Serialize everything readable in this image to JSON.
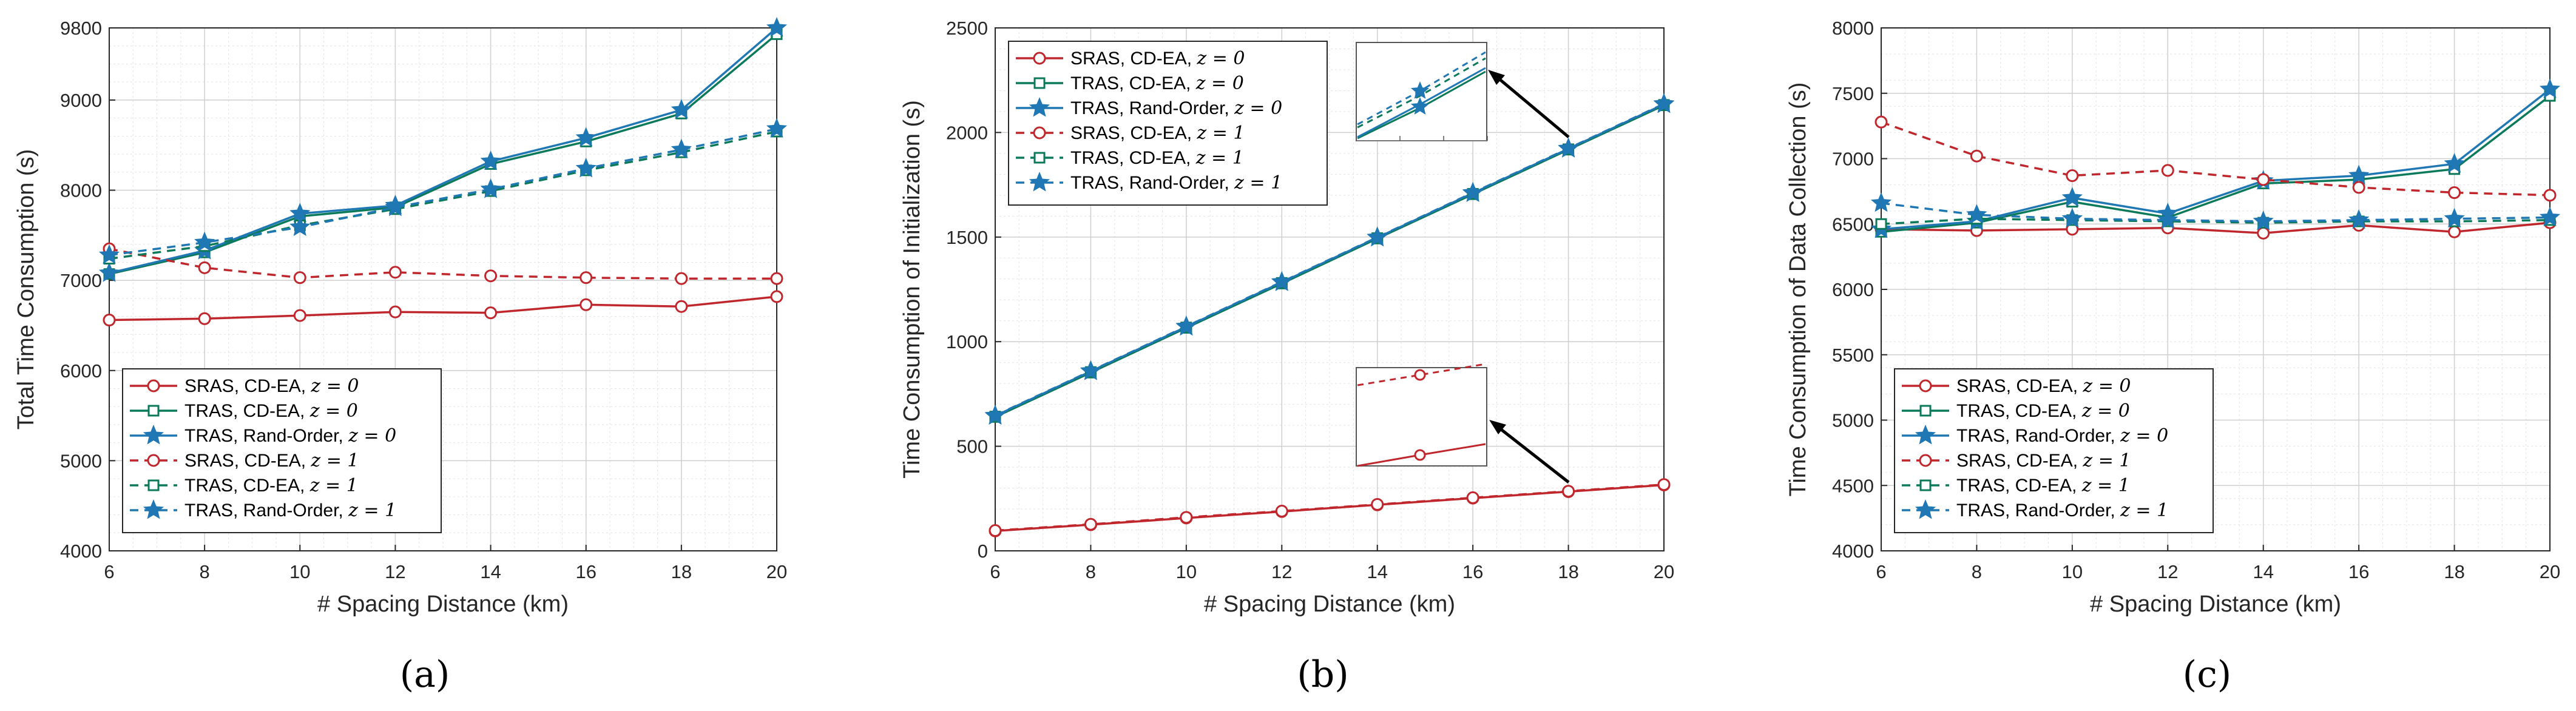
{
  "panel_labels": [
    "(a)",
    "(b)",
    "(c)"
  ],
  "legend_entries": [
    {
      "label": "SRAS, CD-EA, ",
      "math": "z = 0"
    },
    {
      "label": "TRAS, CD-EA, ",
      "math": "z = 0"
    },
    {
      "label": "TRAS, Rand-Order, ",
      "math": "z = 0"
    },
    {
      "label": "SRAS, CD-EA, ",
      "math": "z = 1"
    },
    {
      "label": "TRAS, CD-EA, ",
      "math": "z = 1"
    },
    {
      "label": "TRAS, Rand-Order, ",
      "math": "z = 1"
    }
  ],
  "series_styles": [
    {
      "name": "SRAS, CD-EA, z = 0",
      "color": "#c0272d",
      "dash": "solid",
      "marker": "circle"
    },
    {
      "name": "TRAS, CD-EA, z = 0",
      "color": "#0b7a5a",
      "dash": "solid",
      "marker": "square"
    },
    {
      "name": "TRAS, Rand-Order, z = 0",
      "color": "#1f77b4",
      "dash": "solid",
      "marker": "star"
    },
    {
      "name": "SRAS, CD-EA, z = 1",
      "color": "#c0272d",
      "dash": "dashed",
      "marker": "circle"
    },
    {
      "name": "TRAS, CD-EA, z = 1",
      "color": "#0b7a5a",
      "dash": "dashed",
      "marker": "square"
    },
    {
      "name": "TRAS, Rand-Order, z = 1",
      "color": "#1f77b4",
      "dash": "dashed",
      "marker": "star"
    }
  ],
  "chart_data": [
    {
      "type": "line",
      "title": "",
      "xlabel": "# Spacing Distance (km)",
      "ylabel": "Total Time Consumption (s)",
      "x": [
        6,
        8,
        10,
        12,
        14,
        16,
        18,
        20
      ],
      "xlim": [
        6,
        20
      ],
      "ylim": [
        4000,
        9800
      ],
      "xticks": [
        6,
        8,
        10,
        12,
        14,
        16,
        18,
        20
      ],
      "yticks": [
        4000,
        5000,
        6000,
        7000,
        8000,
        9000,
        9800
      ],
      "grid": true,
      "legend_position": "bottom-left",
      "series": [
        {
          "name": "SRAS, CD-EA, z = 0",
          "values": [
            6560,
            6575,
            6610,
            6650,
            6640,
            6730,
            6710,
            6820
          ]
        },
        {
          "name": "TRAS, CD-EA, z = 0",
          "values": [
            7070,
            7310,
            7710,
            7810,
            8290,
            8540,
            8850,
            9730
          ]
        },
        {
          "name": "TRAS, Rand-Order, z = 0",
          "values": [
            7080,
            7330,
            7740,
            7830,
            8320,
            8580,
            8890,
            9800
          ]
        },
        {
          "name": "SRAS, CD-EA, z = 1",
          "values": [
            7350,
            7140,
            7030,
            7090,
            7050,
            7030,
            7020,
            7020
          ]
        },
        {
          "name": "TRAS, CD-EA, z = 1",
          "values": [
            7240,
            7380,
            7610,
            7790,
            7990,
            8220,
            8420,
            8650
          ]
        },
        {
          "name": "TRAS, Rand-Order, z = 1",
          "values": [
            7280,
            7420,
            7590,
            7810,
            8010,
            8240,
            8450,
            8680
          ]
        }
      ]
    },
    {
      "type": "line",
      "title": "",
      "xlabel": "# Spacing Distance (km)",
      "ylabel": "Time Consumption of Initialization (s)",
      "x": [
        6,
        8,
        10,
        12,
        14,
        16,
        18,
        20
      ],
      "xlim": [
        6,
        20
      ],
      "ylim": [
        0,
        2500
      ],
      "xticks": [
        6,
        8,
        10,
        12,
        14,
        16,
        18,
        20
      ],
      "yticks": [
        0,
        500,
        1000,
        1500,
        2000,
        2500
      ],
      "grid": true,
      "legend_position": "top-left",
      "insets": [
        "zoom of z = 0 and z = 1 TRAS curves near x = 18",
        "zoom of SRAS curves near x = 18"
      ],
      "series": [
        {
          "name": "SRAS, CD-EA, z = 0",
          "values": [
            95,
            125,
            157,
            188,
            220,
            252,
            283,
            315
          ]
        },
        {
          "name": "TRAS, CD-EA, z = 0",
          "values": [
            640,
            852,
            1066,
            1278,
            1493,
            1705,
            1918,
            2130
          ]
        },
        {
          "name": "TRAS, Rand-Order, z = 0",
          "values": [
            645,
            858,
            1071,
            1284,
            1497,
            1710,
            1922,
            2135
          ]
        },
        {
          "name": "SRAS, CD-EA, z = 1",
          "values": [
            97,
            127,
            160,
            190,
            222,
            254,
            285,
            317
          ]
        },
        {
          "name": "TRAS, CD-EA, z = 1",
          "values": [
            642,
            855,
            1068,
            1281,
            1495,
            1707,
            1920,
            2132
          ]
        },
        {
          "name": "TRAS, Rand-Order, z = 1",
          "values": [
            647,
            860,
            1073,
            1286,
            1499,
            1712,
            1924,
            2137
          ]
        }
      ]
    },
    {
      "type": "line",
      "title": "",
      "xlabel": "# Spacing Distance (km)",
      "ylabel": "Time Consumption of Data Collection (s)",
      "x": [
        6,
        8,
        10,
        12,
        14,
        16,
        18,
        20
      ],
      "xlim": [
        6,
        20
      ],
      "ylim": [
        4000,
        8000
      ],
      "xticks": [
        6,
        8,
        10,
        12,
        14,
        16,
        18,
        20
      ],
      "yticks": [
        4000,
        4500,
        5000,
        5500,
        6000,
        6500,
        7000,
        7500,
        8000
      ],
      "grid": true,
      "legend_position": "bottom-left",
      "series": [
        {
          "name": "SRAS, CD-EA, z = 0",
          "values": [
            6460,
            6450,
            6460,
            6470,
            6430,
            6490,
            6440,
            6510
          ]
        },
        {
          "name": "TRAS, CD-EA, z = 0",
          "values": [
            6440,
            6510,
            6670,
            6550,
            6810,
            6840,
            6920,
            7480
          ]
        },
        {
          "name": "TRAS, Rand-Order, z = 0",
          "values": [
            6460,
            6520,
            6700,
            6580,
            6830,
            6870,
            6960,
            7530
          ]
        },
        {
          "name": "SRAS, CD-EA, z = 1",
          "values": [
            7280,
            7020,
            6870,
            6910,
            6840,
            6780,
            6740,
            6720
          ]
        },
        {
          "name": "TRAS, CD-EA, z = 1",
          "values": [
            6500,
            6540,
            6530,
            6520,
            6510,
            6520,
            6520,
            6530
          ]
        },
        {
          "name": "TRAS, Rand-Order, z = 1",
          "values": [
            6660,
            6570,
            6540,
            6530,
            6520,
            6530,
            6540,
            6550
          ]
        }
      ]
    }
  ]
}
